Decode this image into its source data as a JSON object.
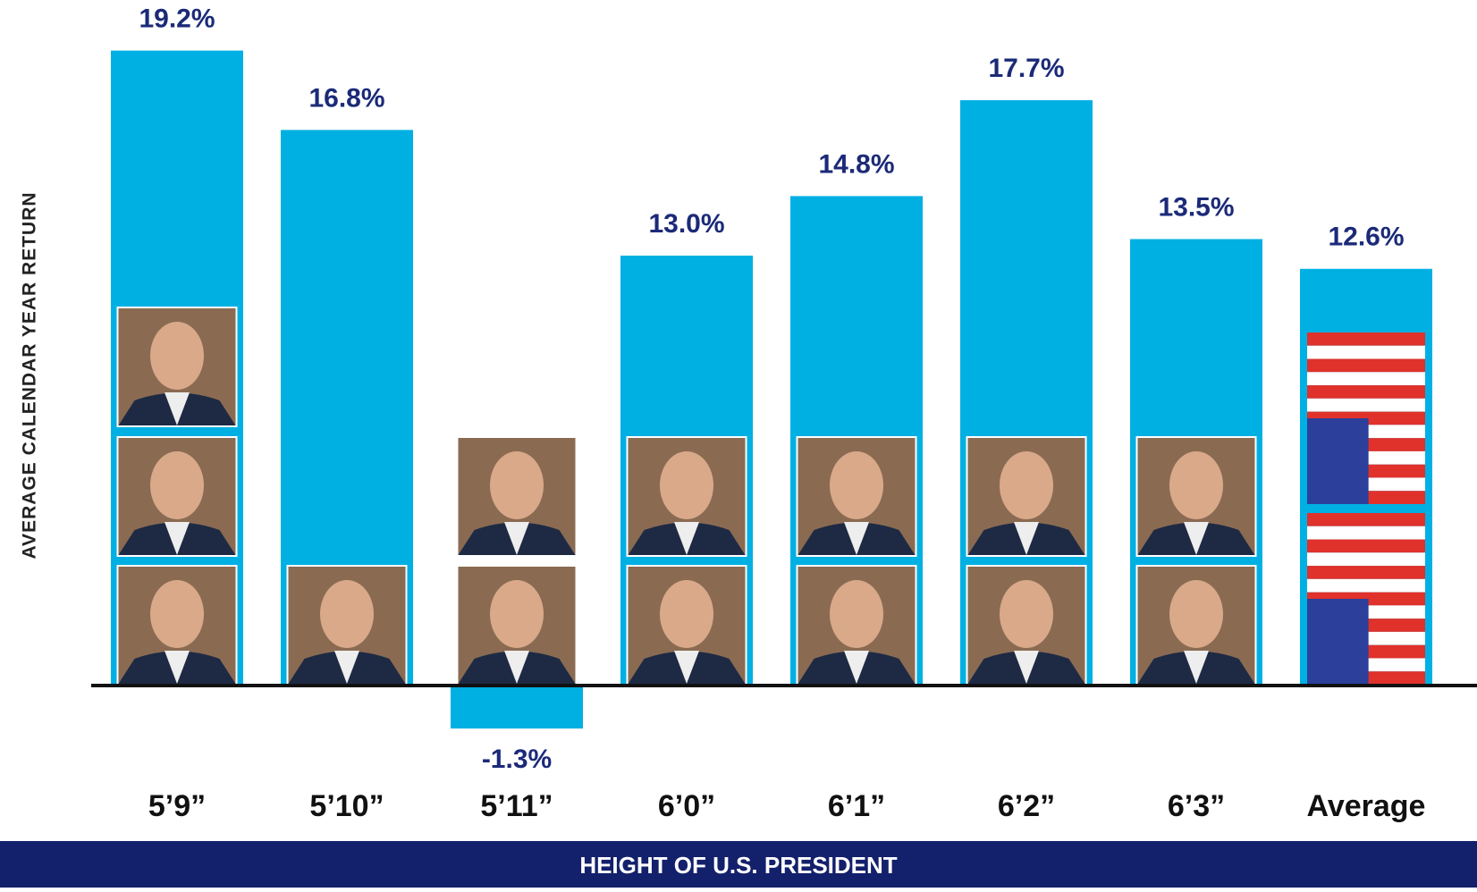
{
  "chart_data": {
    "type": "bar",
    "y_label": "AVERAGE CALENDAR YEAR RETURN",
    "x_label": "HEIGHT OF U.S. PRESIDENT",
    "categories": [
      "5’9”",
      "5’10”",
      "5’11”",
      "6’0”",
      "6’1”",
      "6’2”",
      "6’3”",
      "Average"
    ],
    "values": [
      19.2,
      16.8,
      -1.3,
      13.0,
      14.8,
      17.7,
      13.5,
      12.6
    ],
    "value_labels": [
      "19.2%",
      "16.8%",
      "-1.3%",
      "13.0%",
      "14.8%",
      "17.7%",
      "13.5%",
      "12.6%"
    ],
    "color": "#00b0e3",
    "ylim": [
      -2,
      20
    ]
  }
}
